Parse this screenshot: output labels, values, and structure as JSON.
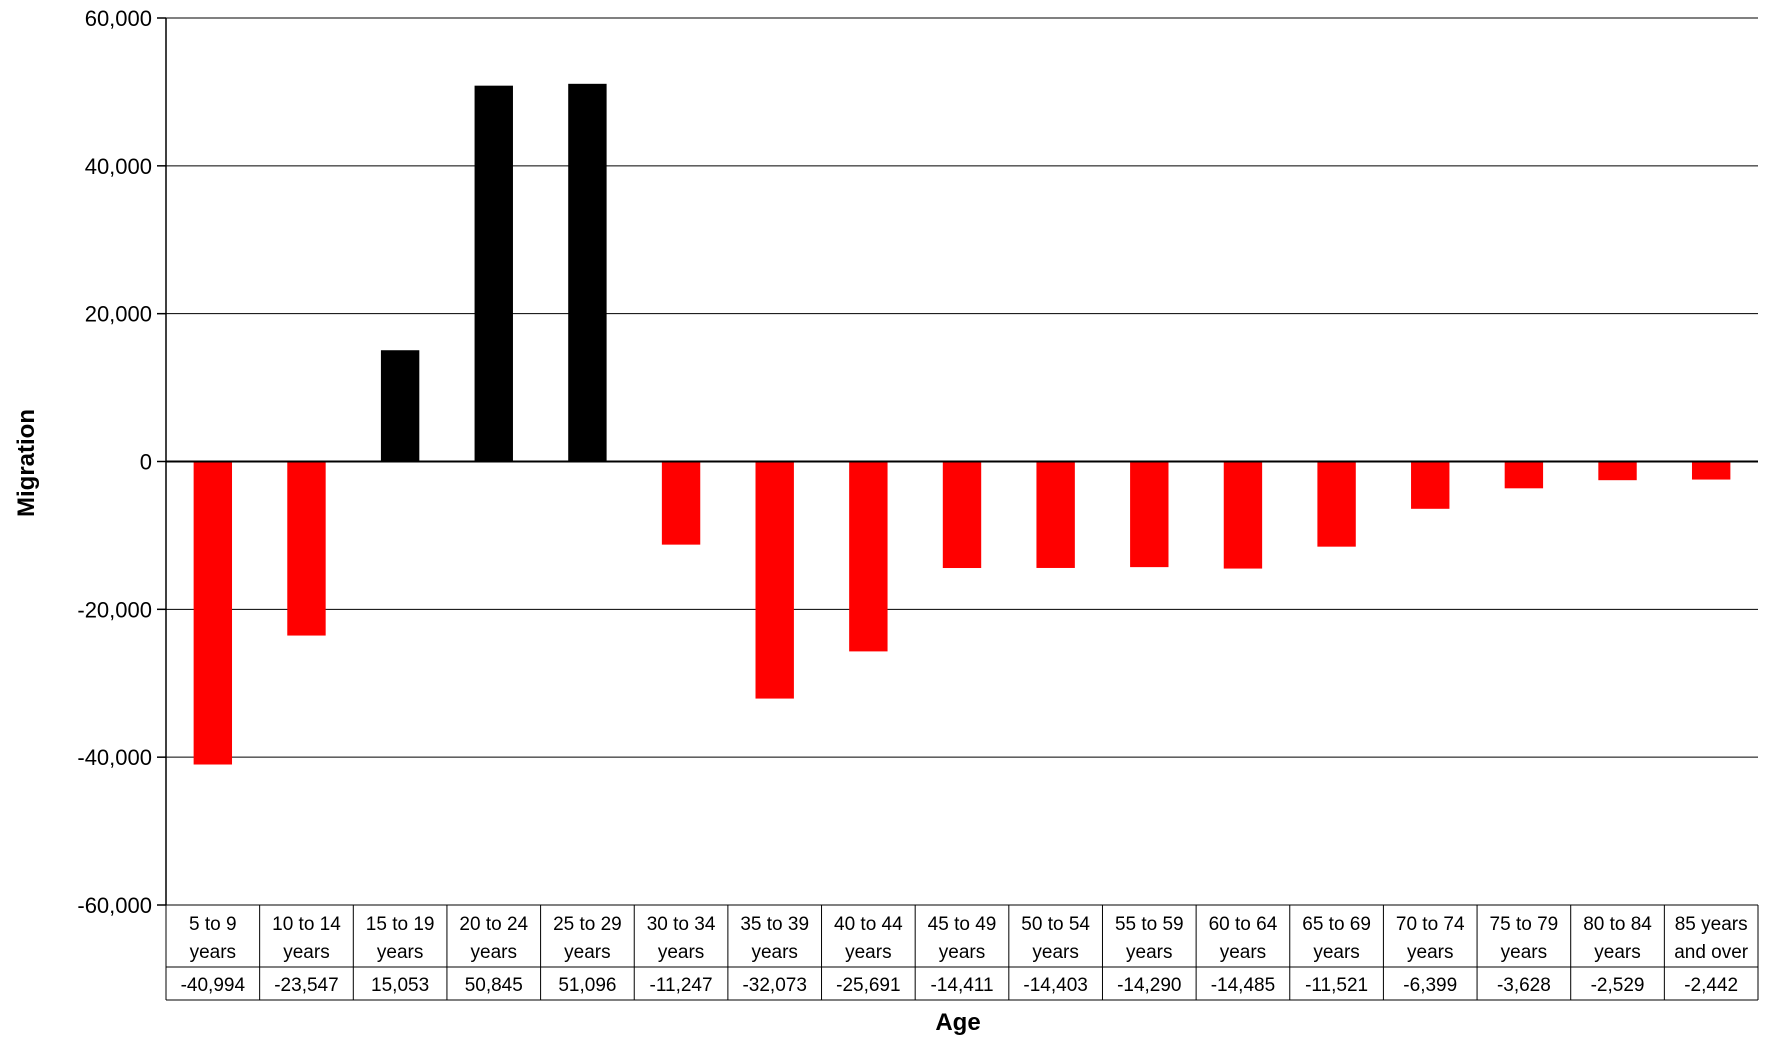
{
  "colors": {
    "positive": "#000000",
    "negative": "#ff0000",
    "grid": "#000000"
  },
  "chart_data": {
    "type": "bar",
    "title": "",
    "xlabel": "Age",
    "ylabel": "Migration",
    "ylim": [
      -60000,
      60000
    ],
    "yticks": [
      60000,
      40000,
      20000,
      0,
      -20000,
      -40000,
      -60000
    ],
    "ytick_labels": [
      "60,000",
      "40,000",
      "20,000",
      "0",
      "-20,000",
      "-40,000",
      "-60,000"
    ],
    "grid": true,
    "legend": "none",
    "categories": [
      [
        "5 to 9",
        "years"
      ],
      [
        "10 to 14",
        "years"
      ],
      [
        "15 to 19",
        "years"
      ],
      [
        "20 to 24",
        "years"
      ],
      [
        "25 to 29",
        "years"
      ],
      [
        "30 to 34",
        "years"
      ],
      [
        "35 to 39",
        "years"
      ],
      [
        "40 to 44",
        "years"
      ],
      [
        "45 to 49",
        "years"
      ],
      [
        "50 to 54",
        "years"
      ],
      [
        "55 to 59",
        "years"
      ],
      [
        "60 to 64",
        "years"
      ],
      [
        "65 to 69",
        "years"
      ],
      [
        "70 to 74",
        "years"
      ],
      [
        "75 to 79",
        "years"
      ],
      [
        "80 to 84",
        "years"
      ],
      [
        "85 years",
        "and over"
      ]
    ],
    "values": [
      -40994,
      -23547,
      15053,
      50845,
      51096,
      -11247,
      -32073,
      -25691,
      -14411,
      -14403,
      -14290,
      -14485,
      -11521,
      -6399,
      -3628,
      -2529,
      -2442
    ],
    "value_labels": [
      "-40,994",
      "-23,547",
      "15,053",
      "50,845",
      "51,096",
      "-11,247",
      "-32,073",
      "-25,691",
      "-14,411",
      "-14,403",
      "-14,290",
      "-14,485",
      "-11,521",
      "-6,399",
      "-3,628",
      "-2,529",
      "-2,442"
    ]
  }
}
